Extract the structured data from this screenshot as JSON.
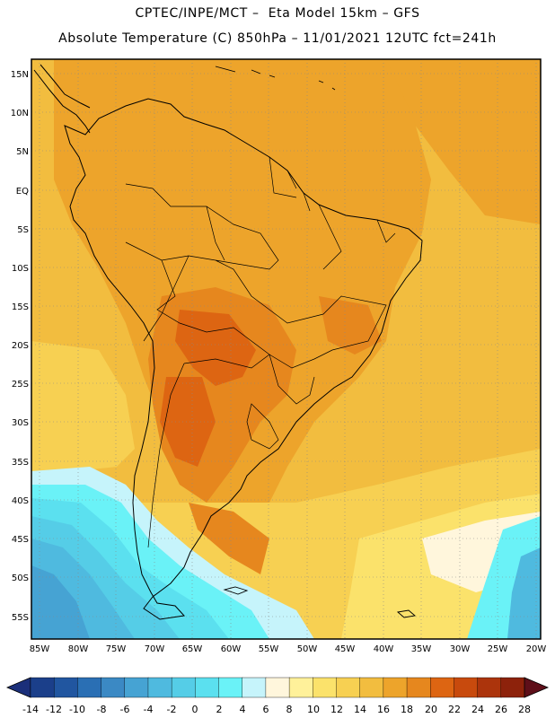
{
  "header": {
    "line1": "CPTEC/INPE/MCT –  Eta Model 15km – GFS",
    "line2": "Absolute Temperature (C) 850hPa – 11/01/2021 12UTC fct=241h"
  },
  "map": {
    "lat_labels": [
      "15N",
      "10N",
      "5N",
      "EQ",
      "5S",
      "10S",
      "15S",
      "20S",
      "25S",
      "30S",
      "35S",
      "40S",
      "45S",
      "50S",
      "55S"
    ],
    "lon_labels": [
      "85W",
      "80W",
      "75W",
      "70W",
      "65W",
      "60W",
      "55W",
      "50W",
      "45W",
      "40W",
      "35W",
      "30W",
      "25W",
      "20W"
    ]
  },
  "colorbar": {
    "labels": [
      "-14",
      "-12",
      "-10",
      "-8",
      "-6",
      "-4",
      "-2",
      "0",
      "2",
      "4",
      "6",
      "8",
      "10",
      "12",
      "14",
      "16",
      "18",
      "20",
      "22",
      "24",
      "26",
      "28"
    ],
    "colors": [
      "#1b3f8a",
      "#2156a0",
      "#2a6fb4",
      "#3b89c4",
      "#46a3d3",
      "#4fbadf",
      "#55cde7",
      "#5be0ef",
      "#6af2f7",
      "#c6f4fb",
      "#fff6dc",
      "#fff19a",
      "#fbe26b",
      "#f7d052",
      "#f2bd3f",
      "#eda42b",
      "#e6871e",
      "#dd6512",
      "#c84a0d",
      "#ac340c",
      "#8d220b",
      "#6f1510"
    ],
    "low_arrow_color": "#1b2f7a",
    "high_arrow_color": "#5e0f19"
  }
}
